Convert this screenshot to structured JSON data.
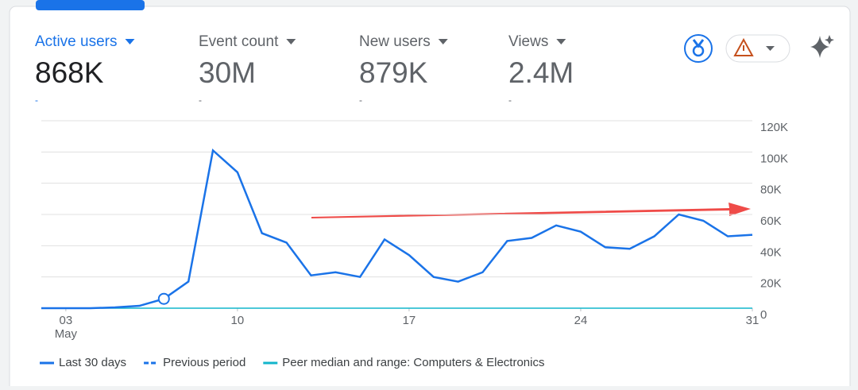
{
  "metrics": [
    {
      "label": "Active users",
      "value": "868K",
      "delta": "-"
    },
    {
      "label": "Event count",
      "value": "30M",
      "delta": "-"
    },
    {
      "label": "New users",
      "value": "879K",
      "delta": "-"
    },
    {
      "label": "Views",
      "value": "2.4M",
      "delta": "-"
    }
  ],
  "chart_data": {
    "type": "line",
    "x": [
      2,
      3,
      4,
      5,
      6,
      7,
      8,
      9,
      10,
      11,
      12,
      13,
      14,
      15,
      16,
      17,
      18,
      19,
      20,
      21,
      22,
      23,
      24,
      25,
      26,
      27,
      28,
      29,
      30,
      31
    ],
    "x_sublabel": "May",
    "series": [
      {
        "name": "Last 30 days",
        "color": "#1a73e8",
        "values": [
          0,
          0,
          0,
          500,
          1500,
          6000,
          17000,
          101000,
          87000,
          48000,
          42000,
          21000,
          23000,
          20000,
          44000,
          34000,
          20000,
          17000,
          23000,
          43000,
          45000,
          53000,
          49000,
          39000,
          38000,
          46000,
          60000,
          56000,
          46000,
          47000
        ]
      },
      {
        "name": "Previous period",
        "color": "#1a73e8",
        "dashed": true,
        "values": [
          null,
          null,
          null,
          null,
          null,
          null,
          null,
          null,
          null,
          null,
          null,
          null,
          null,
          null,
          null,
          null,
          null,
          null,
          null,
          null,
          null,
          null,
          null,
          null,
          null,
          null,
          null,
          null,
          null,
          null
        ]
      },
      {
        "name": "Peer median and range: Computers & Electronics",
        "color": "#12b5cb",
        "values": [
          0,
          0,
          0,
          0,
          0,
          0,
          0,
          0,
          0,
          0,
          0,
          0,
          0,
          0,
          0,
          0,
          0,
          0,
          0,
          0,
          0,
          0,
          0,
          0,
          0,
          0,
          0,
          0,
          0,
          0
        ]
      }
    ],
    "xlim": [
      2,
      31
    ],
    "xticks": [
      {
        "value": 3,
        "label": "03"
      },
      {
        "value": 10,
        "label": "10"
      },
      {
        "value": 17,
        "label": "17"
      },
      {
        "value": 24,
        "label": "24"
      },
      {
        "value": 31,
        "label": "31"
      }
    ],
    "ylim": [
      0,
      120000
    ],
    "yticks": [
      0,
      {
        "value": 20000,
        "label": "20K"
      },
      {
        "value": 40000,
        "label": "40K"
      },
      {
        "value": 60000,
        "label": "60K"
      },
      {
        "value": 80000,
        "label": "80K"
      },
      {
        "value": 100000,
        "label": "100K"
      },
      {
        "value": 120000,
        "label": "120K"
      }
    ],
    "grid": true,
    "highlight_index": 5
  }
}
